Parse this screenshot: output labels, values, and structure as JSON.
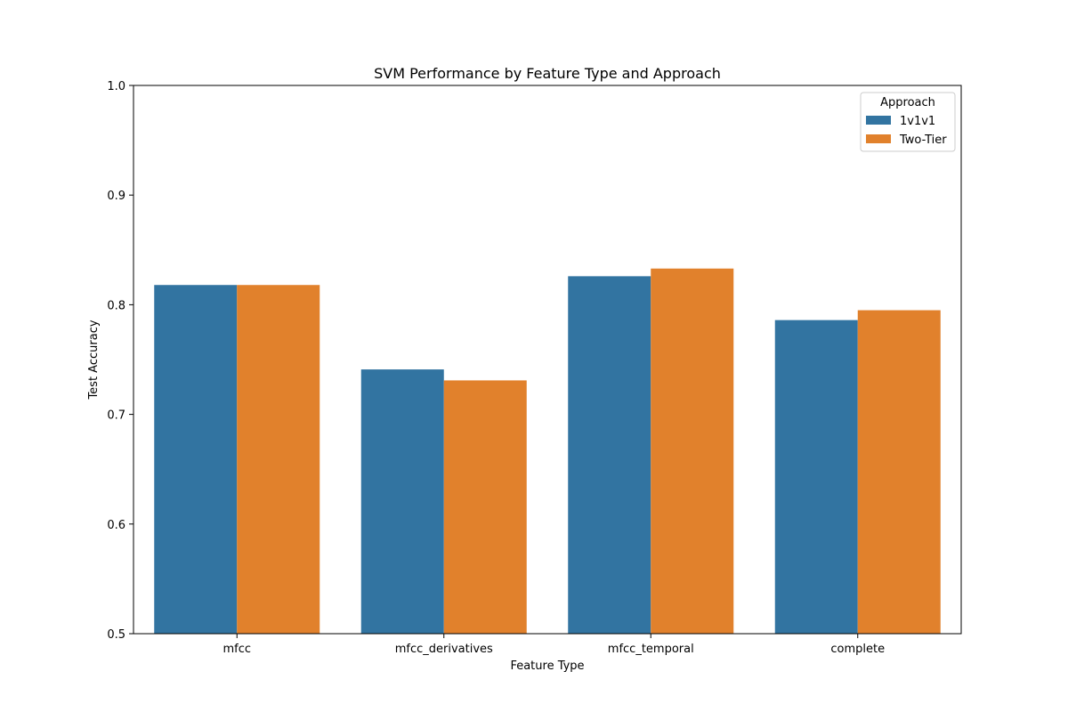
{
  "chart_data": {
    "type": "bar",
    "title": "SVM Performance by Feature Type and Approach",
    "xlabel": "Feature Type",
    "ylabel": "Test Accuracy",
    "ylim": [
      0.5,
      1.0
    ],
    "yticks": [
      "0.5",
      "0.6",
      "0.7",
      "0.8",
      "0.9",
      "1.0"
    ],
    "categories": [
      "mfcc",
      "mfcc_derivatives",
      "mfcc_temporal",
      "complete"
    ],
    "series": [
      {
        "name": "1v1v1",
        "color": "#3274a1",
        "values": [
          0.818,
          0.741,
          0.826,
          0.786
        ]
      },
      {
        "name": "Two-Tier",
        "color": "#e1812c",
        "values": [
          0.818,
          0.731,
          0.833,
          0.795
        ]
      }
    ],
    "legend": {
      "title": "Approach",
      "position": "top-right"
    },
    "grid": false
  }
}
